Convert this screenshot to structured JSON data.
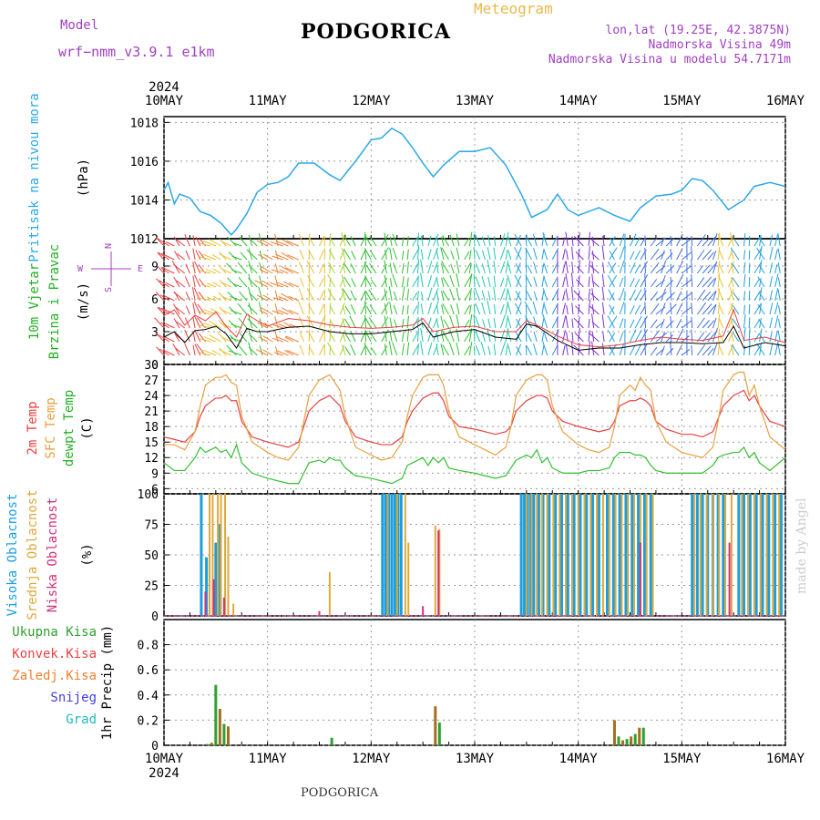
{
  "header": {
    "title": "PODGORICA",
    "meteogram": "Meteogram",
    "model_label": "Model",
    "model_name": "wrf−nmm_v3.9.1  e1km",
    "lonlat": "lon,lat (19.25E, 42.3875N)",
    "elevation": "Nadmorska Visina 49m",
    "elevation_model": "Nadmorska Visina u modelu 54.7171m",
    "bottom_city": "PODGORICA",
    "made_by": "made by Angel"
  },
  "colors": {
    "pressure": "#2aa8e8",
    "wind_speed": "#000000",
    "gust": "#e84040",
    "t2m": "#e84040",
    "sfc": "#e8a040",
    "dewpt": "#30c030",
    "cloud_high": "#1a9ee0",
    "cloud_mid": "#e0a83a",
    "cloud_low": "#d03080",
    "precip_total": "#30a030",
    "precip_conv": "#e84040",
    "precip_zaledj": "#f08030",
    "snow": "#4040e0",
    "grad": "#20b8c0"
  },
  "chart_data": [
    {
      "type": "line",
      "panel": "pressure",
      "ylabel": [
        "Pritisak na nivou mora",
        "(hPa)"
      ],
      "x_year": "2024",
      "x_ticks": [
        "10MAY",
        "11MAY",
        "12MAY",
        "13MAY",
        "14MAY",
        "15MAY",
        "16MAY"
      ],
      "ylim": [
        1012,
        1018.3
      ],
      "yticks": [
        1012,
        1014,
        1016,
        1018
      ],
      "x_days": [
        0,
        0.04,
        0.1,
        0.15,
        0.25,
        0.35,
        0.45,
        0.55,
        0.65,
        0.7,
        0.8,
        0.9,
        1.0,
        1.1,
        1.2,
        1.3,
        1.45,
        1.6,
        1.7,
        1.85,
        2.0,
        2.1,
        2.2,
        2.3,
        2.4,
        2.5,
        2.6,
        2.7,
        2.85,
        3.0,
        3.15,
        3.3,
        3.45,
        3.55,
        3.7,
        3.8,
        3.9,
        4.0,
        4.1,
        4.2,
        4.35,
        4.5,
        4.6,
        4.75,
        4.9,
        5.0,
        5.1,
        5.2,
        5.3,
        5.45,
        5.6,
        5.7,
        5.85,
        6.0
      ],
      "series": [
        {
          "values": [
            1014.5,
            1014.9,
            1013.8,
            1014.3,
            1014.1,
            1013.4,
            1013.2,
            1012.8,
            1012.2,
            1012.5,
            1013.3,
            1014.4,
            1014.8,
            1014.9,
            1015.2,
            1015.9,
            1015.9,
            1015.3,
            1015.0,
            1016.0,
            1017.1,
            1017.2,
            1017.7,
            1017.4,
            1016.7,
            1015.9,
            1015.2,
            1015.8,
            1016.5,
            1016.5,
            1016.7,
            1015.8,
            1014.3,
            1013.1,
            1013.5,
            1014.3,
            1013.5,
            1013.2,
            1013.4,
            1013.6,
            1013.2,
            1012.9,
            1013.6,
            1014.2,
            1014.3,
            1014.5,
            1015.1,
            1015.0,
            1014.5,
            1013.5,
            1014.0,
            1014.7,
            1014.9,
            1014.7
          ]
        }
      ]
    },
    {
      "type": "line",
      "panel": "wind",
      "ylabel": [
        "10m Vjetar",
        "Brzina i Pravac",
        "(m/s)"
      ],
      "compass": [
        "N",
        "S",
        "W",
        "E"
      ],
      "ylim": [
        0,
        11.5
      ],
      "yticks": [
        0,
        3,
        6,
        9
      ],
      "x_days": [
        0,
        0.1,
        0.2,
        0.3,
        0.4,
        0.5,
        0.6,
        0.7,
        0.8,
        0.9,
        1.0,
        1.2,
        1.4,
        1.6,
        1.8,
        2.0,
        2.2,
        2.4,
        2.5,
        2.6,
        2.8,
        3.0,
        3.2,
        3.4,
        3.5,
        3.6,
        3.8,
        4.0,
        4.2,
        4.4,
        4.6,
        4.8,
        5.0,
        5.2,
        5.4,
        5.5,
        5.6,
        5.8,
        6.0
      ],
      "series": [
        {
          "name": "speed",
          "values": [
            2.5,
            3.0,
            2.0,
            3.1,
            3.2,
            3.5,
            2.8,
            1.5,
            3.3,
            3.0,
            3.0,
            3.4,
            3.5,
            3.0,
            2.8,
            2.8,
            3.0,
            3.2,
            3.8,
            2.5,
            3.0,
            3.2,
            2.5,
            2.3,
            3.7,
            3.5,
            2.2,
            1.3,
            1.5,
            1.5,
            1.8,
            2.0,
            2.0,
            1.9,
            2.0,
            3.5,
            1.5,
            2.0,
            1.7
          ]
        },
        {
          "name": "gust",
          "values": [
            4.5,
            5.0,
            3.6,
            4.5,
            4.0,
            4.8,
            3.5,
            2.5,
            4.6,
            4.0,
            3.5,
            4.2,
            4.0,
            3.6,
            3.4,
            3.3,
            3.4,
            3.6,
            4.2,
            3.0,
            3.4,
            3.5,
            3.0,
            3.0,
            4.0,
            3.6,
            2.6,
            1.8,
            1.6,
            1.8,
            2.2,
            2.5,
            2.3,
            2.2,
            2.6,
            5.0,
            2.2,
            2.5,
            2.0
          ]
        }
      ]
    },
    {
      "type": "line",
      "panel": "temperature",
      "ylabel": [
        "2m Temp",
        "SFC Temp",
        "dewpt Temp",
        "(C)"
      ],
      "ylim": [
        5,
        30
      ],
      "yticks": [
        6,
        9,
        12,
        15,
        18,
        21,
        24,
        27,
        30
      ],
      "x_days": [
        0,
        0.1,
        0.2,
        0.3,
        0.35,
        0.4,
        0.5,
        0.55,
        0.6,
        0.65,
        0.7,
        0.75,
        0.85,
        1.0,
        1.1,
        1.2,
        1.3,
        1.35,
        1.4,
        1.5,
        1.55,
        1.6,
        1.65,
        1.7,
        1.75,
        1.85,
        2.0,
        2.1,
        2.2,
        2.3,
        2.35,
        2.4,
        2.5,
        2.55,
        2.6,
        2.65,
        2.7,
        2.75,
        2.85,
        3.0,
        3.1,
        3.2,
        3.3,
        3.35,
        3.4,
        3.5,
        3.55,
        3.6,
        3.65,
        3.7,
        3.75,
        3.85,
        4.0,
        4.1,
        4.2,
        4.3,
        4.35,
        4.4,
        4.5,
        4.55,
        4.6,
        4.65,
        4.7,
        4.75,
        4.85,
        5.0,
        5.1,
        5.2,
        5.3,
        5.35,
        5.4,
        5.5,
        5.55,
        5.6,
        5.65,
        5.7,
        5.75,
        5.85,
        6.0
      ],
      "series": [
        {
          "name": "t2m",
          "values": [
            16,
            15.5,
            15,
            17,
            20,
            22,
            23.5,
            23.5,
            24,
            23,
            23,
            19,
            16,
            15,
            14.5,
            14,
            15,
            18,
            21,
            23,
            23.5,
            24,
            23,
            22,
            19,
            16,
            15,
            14.5,
            14.5,
            16,
            19,
            21,
            23.5,
            24,
            24.5,
            24.5,
            23,
            20,
            18,
            17.5,
            17,
            16.5,
            17,
            18,
            21,
            23,
            23.5,
            24,
            24,
            23.5,
            21,
            19,
            18,
            17.5,
            17,
            17.5,
            19,
            22,
            23,
            23,
            23.5,
            23,
            22,
            19,
            17.5,
            16.5,
            16.5,
            16,
            17,
            19.5,
            22,
            24,
            24.5,
            25,
            23,
            24,
            22,
            19,
            18
          ]
        },
        {
          "name": "sfc",
          "values": [
            14.5,
            14.5,
            13.5,
            17,
            22,
            26,
            27.5,
            27.5,
            28,
            26.5,
            26,
            20,
            15,
            13,
            12,
            11.5,
            14,
            19,
            24,
            27,
            27.5,
            28,
            26.5,
            25,
            20,
            14,
            12.5,
            11.5,
            12,
            15,
            20,
            24,
            27.5,
            28,
            28,
            28,
            26,
            21,
            16,
            14.5,
            13.5,
            12.5,
            14,
            18,
            24,
            27,
            27.5,
            28,
            28,
            27,
            22,
            17,
            14.5,
            13.5,
            13,
            14,
            18,
            24,
            26,
            25,
            27.5,
            26,
            25,
            19,
            15,
            13,
            12.5,
            12,
            14,
            19,
            25,
            28,
            28.5,
            28.5,
            24,
            26,
            22,
            16,
            13.5
          ]
        },
        {
          "name": "dewpt",
          "values": [
            11,
            9.5,
            9.5,
            12,
            14,
            13,
            14,
            13,
            13.5,
            12,
            14.5,
            11,
            9,
            8,
            7.5,
            7,
            7,
            9,
            11,
            11.5,
            11,
            12,
            11.5,
            11.5,
            10,
            8.5,
            8,
            7.5,
            7,
            8,
            10.5,
            11,
            12,
            10.5,
            12,
            11,
            12,
            10,
            9.5,
            9,
            8.5,
            8,
            8.5,
            10,
            11.5,
            12.5,
            12,
            13.5,
            11,
            12,
            10,
            9,
            9,
            9.5,
            9.5,
            10,
            12,
            13,
            13,
            12.5,
            12.5,
            12,
            10.5,
            9.5,
            9,
            9,
            9,
            9,
            10.5,
            12,
            12.5,
            13,
            13,
            14,
            12,
            13,
            11,
            9.5,
            12
          ]
        }
      ]
    },
    {
      "type": "bar",
      "panel": "cloud",
      "ylabel": [
        "Visoka Oblacnost",
        "Srednja Oblacnost",
        "Niska Oblacnost",
        "(%)"
      ],
      "ylim": [
        0,
        100
      ],
      "yticks": [
        0,
        25,
        50,
        75,
        100
      ],
      "series": [
        {
          "name": "high",
          "x_days": [
            0.36,
            0.41,
            0.5,
            0.53,
            2.11,
            2.14,
            2.17,
            2.2,
            2.23,
            2.26,
            2.29,
            3.45,
            3.48,
            3.51,
            3.54,
            3.57,
            3.62,
            3.66,
            3.72,
            3.78,
            3.84,
            3.9,
            3.96,
            4.02,
            4.08,
            4.14,
            4.2,
            4.28,
            4.34,
            4.4,
            4.46,
            4.52,
            4.58,
            4.64,
            4.7,
            5.1,
            5.15,
            5.2,
            5.25,
            5.3,
            5.35,
            5.4,
            5.55,
            5.6,
            5.66,
            5.72,
            5.78,
            5.84,
            5.9,
            5.96
          ],
          "values": [
            100,
            48,
            60,
            75,
            100,
            100,
            100,
            100,
            100,
            100,
            100,
            100,
            100,
            100,
            100,
            100,
            100,
            100,
            100,
            100,
            100,
            100,
            100,
            100,
            100,
            100,
            100,
            100,
            100,
            100,
            100,
            100,
            100,
            100,
            100,
            100,
            100,
            100,
            100,
            100,
            100,
            100,
            100,
            100,
            100,
            100,
            100,
            100,
            100,
            100
          ]
        },
        {
          "name": "mid",
          "x_days": [
            0.44,
            0.47,
            0.52,
            0.55,
            0.59,
            0.62,
            0.67,
            1.6,
            2.16,
            2.25,
            2.33,
            2.36,
            2.62,
            2.66,
            3.5,
            3.55,
            3.6,
            3.65,
            3.7,
            3.76,
            3.82,
            3.88,
            3.94,
            4.0,
            4.06,
            4.12,
            4.18,
            4.24,
            4.3,
            4.36,
            4.42,
            4.48,
            4.54,
            4.6,
            4.66,
            4.72,
            5.12,
            5.18,
            5.24,
            5.3,
            5.36,
            5.42,
            5.48,
            5.58,
            5.64,
            5.7,
            5.76,
            5.82,
            5.88,
            5.94
          ],
          "values": [
            100,
            100,
            100,
            100,
            100,
            65,
            10,
            36,
            100,
            100,
            100,
            60,
            74,
            71,
            100,
            100,
            100,
            100,
            100,
            100,
            100,
            100,
            100,
            100,
            100,
            100,
            100,
            100,
            100,
            100,
            100,
            100,
            100,
            100,
            100,
            100,
            100,
            100,
            100,
            100,
            100,
            100,
            100,
            100,
            100,
            100,
            100,
            100,
            100,
            100
          ]
        },
        {
          "name": "low",
          "x_days": [
            0.4,
            0.48,
            0.58,
            1.5,
            2.5,
            2.65,
            4.6,
            5.46
          ],
          "values": [
            20,
            30,
            15,
            4,
            8,
            70,
            60,
            60
          ]
        }
      ]
    },
    {
      "type": "bar",
      "panel": "precip",
      "ylabel": "1hr Precip (mm)",
      "legend": [
        "Ukupna Kisa",
        "Konvek.Kisa",
        "Zaledj.Kisa",
        "Snijeg",
        "Grad"
      ],
      "ylim": [
        0,
        1.0
      ],
      "yticks": [
        0,
        0.2,
        0.4,
        0.6,
        0.8
      ],
      "x_days": [
        0.42,
        0.46,
        0.5,
        0.54,
        0.58,
        0.62,
        1.62,
        2.62,
        2.66,
        4.35,
        4.39,
        4.43,
        4.47,
        4.51,
        4.55,
        4.59,
        4.63
      ],
      "values": [
        0.01,
        0.02,
        0.48,
        0.29,
        0.17,
        0.15,
        0.06,
        0.31,
        0.18,
        0.2,
        0.07,
        0.04,
        0.05,
        0.07,
        0.09,
        0.14,
        0.14
      ]
    }
  ]
}
